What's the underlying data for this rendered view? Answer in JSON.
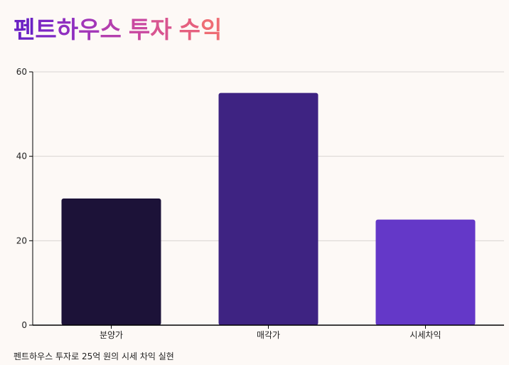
{
  "title": "펜트하우스 투자 수익",
  "title_colors": [
    "#6a22c4",
    "#7d27c4",
    "#8f2fc0",
    "#a236b8",
    "#b43fae",
    "#c948a0",
    "#d85590",
    "#e5607f",
    "#ee6d74",
    "#f37c6b"
  ],
  "caption": "펜트하우스 투자로 25억 원의 시세 차익 실현",
  "colors": {
    "background": "#fdf9f6",
    "grid": "#d8d4d2",
    "axis": "#000000"
  },
  "chart_data": {
    "type": "bar",
    "categories": [
      "분양가",
      "매각가",
      "시세차익"
    ],
    "values": [
      30,
      55,
      25
    ],
    "bar_colors": [
      "#1c1238",
      "#3e2382",
      "#6438c8"
    ],
    "ylim": [
      0,
      60
    ],
    "yticks": [
      0,
      20,
      40,
      60
    ],
    "grid": true,
    "title": "",
    "xlabel": "",
    "ylabel": ""
  }
}
